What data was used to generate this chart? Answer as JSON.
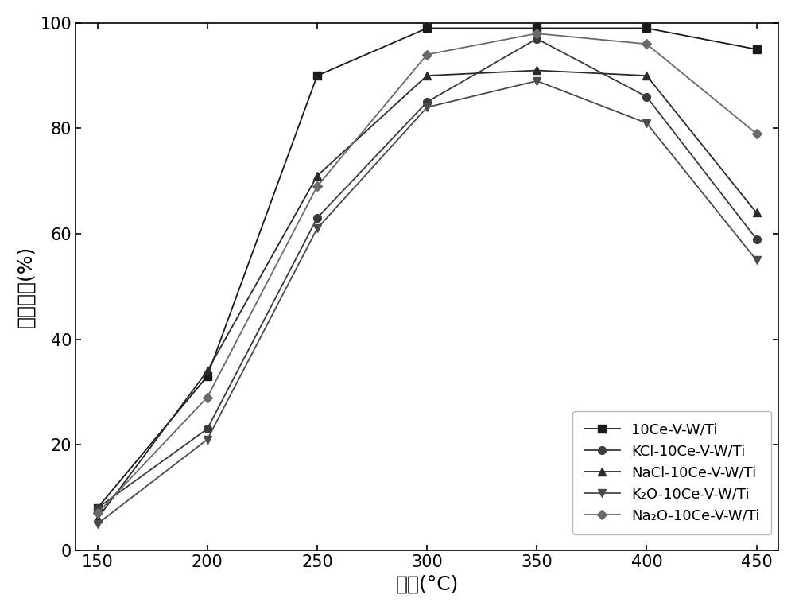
{
  "x": [
    150,
    200,
    250,
    300,
    350,
    400,
    450
  ],
  "series": [
    {
      "label": "10Ce-V-W/Ti",
      "y": [
        8,
        33,
        90,
        99,
        99,
        99,
        95
      ],
      "color": "#1a1a1a",
      "marker": "s",
      "markersize": 7,
      "linewidth": 1.3
    },
    {
      "label": "KCl-10Ce-V-W/Ti",
      "y": [
        8,
        23,
        63,
        85,
        97,
        86,
        59
      ],
      "color": "#3a3a3a",
      "marker": "o",
      "markersize": 7,
      "linewidth": 1.3
    },
    {
      "label": "NaCl-10Ce-V-W/Ti",
      "y": [
        6,
        34,
        71,
        90,
        91,
        90,
        64
      ],
      "color": "#2a2a2a",
      "marker": "^",
      "markersize": 7,
      "linewidth": 1.3
    },
    {
      "label": "K₂O-10Ce-V-W/Ti",
      "y": [
        5,
        21,
        61,
        84,
        89,
        81,
        55
      ],
      "color": "#4a4a4a",
      "marker": "v",
      "markersize": 7,
      "linewidth": 1.3
    },
    {
      "label": "Na₂O-10Ce-V-W/Ti",
      "y": [
        7,
        29,
        69,
        94,
        98,
        96,
        79
      ],
      "color": "#6a6a6a",
      "marker": "D",
      "markersize": 6,
      "linewidth": 1.3
    }
  ],
  "xlabel": "温度(°C)",
  "ylabel": "脱硒效率(%)",
  "xlim": [
    140,
    460
  ],
  "ylim": [
    0,
    100
  ],
  "xticks": [
    150,
    200,
    250,
    300,
    350,
    400,
    450
  ],
  "yticks": [
    0,
    20,
    40,
    60,
    80,
    100
  ],
  "fontsize_label": 18,
  "fontsize_tick": 15,
  "fontsize_legend": 13,
  "figure_width": 10.0,
  "figure_height": 7.67
}
